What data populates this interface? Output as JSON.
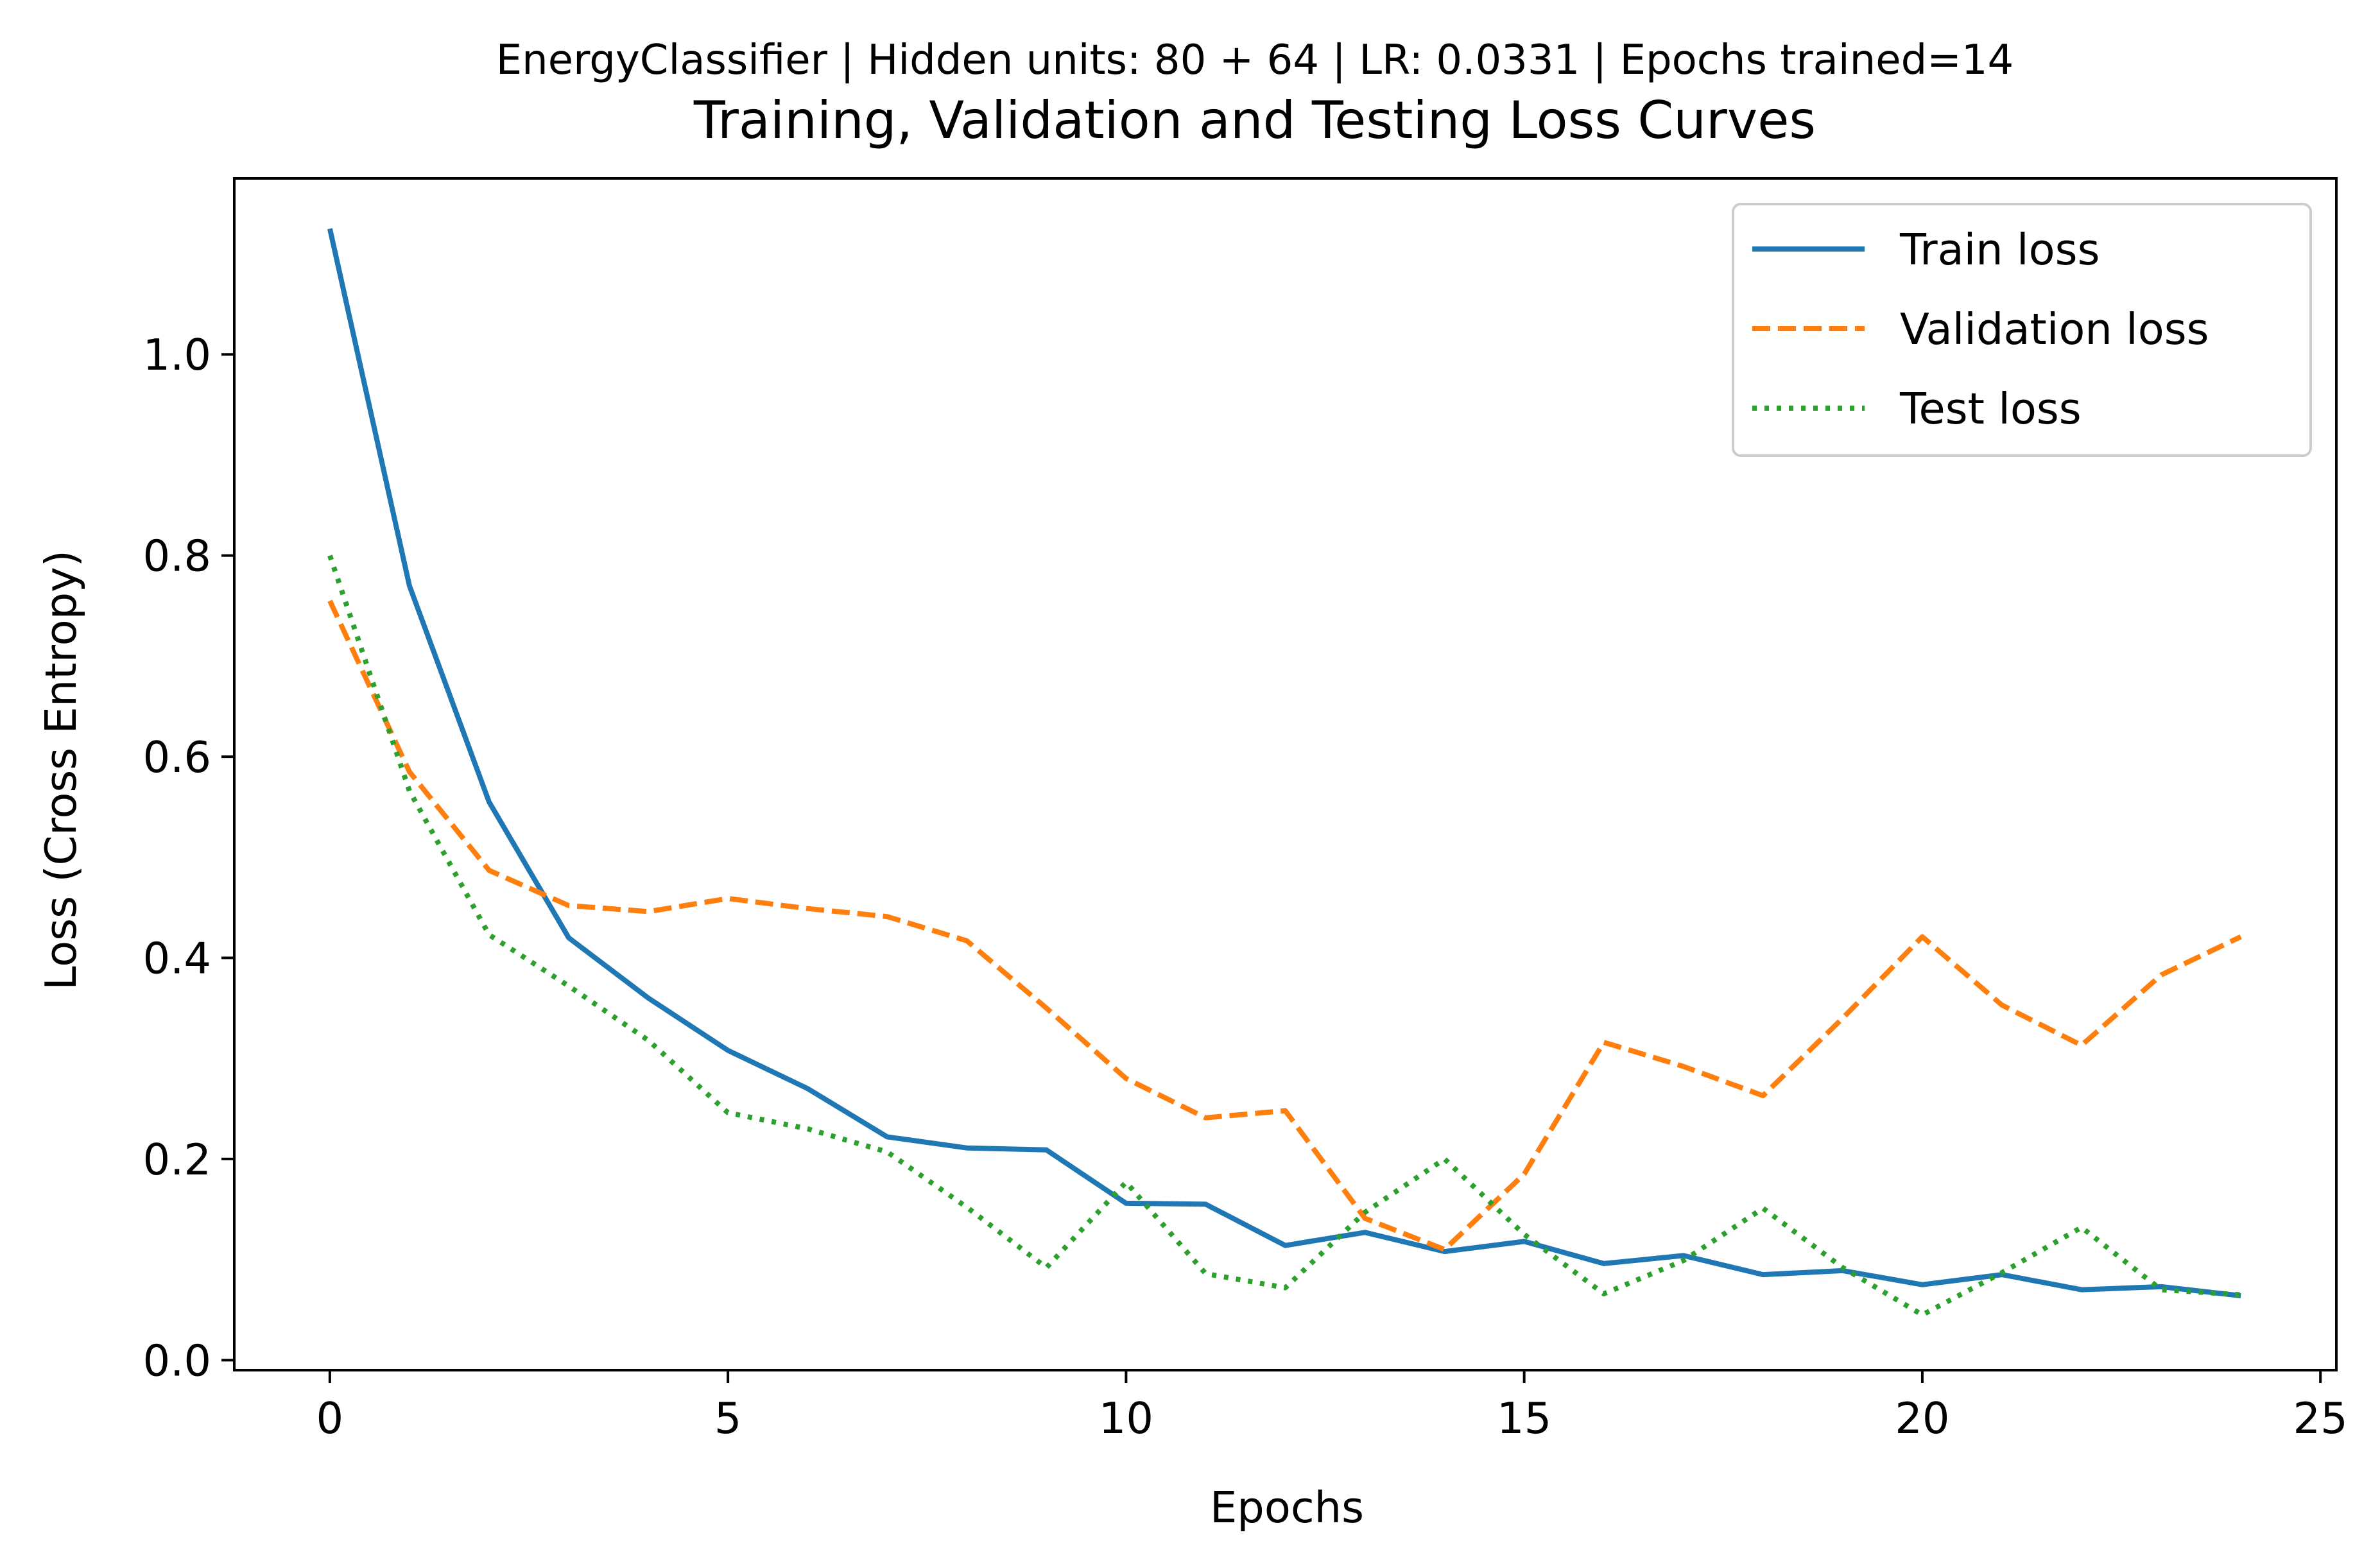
{
  "chart_data": {
    "type": "line",
    "suptitle": "EnergyClassifier | Hidden units: 80 + 64 | LR: 0.0331 | Epochs trained=14",
    "title": "Training, Validation and Testing Loss Curves",
    "xlabel": "Epochs",
    "ylabel": "Loss (Cross Entropy)",
    "xlim": [
      -1.2,
      25.2
    ],
    "ylim": [
      -0.01,
      1.175
    ],
    "xticks": [
      0,
      5,
      10,
      15,
      20,
      25
    ],
    "xtick_labels": [
      "0",
      "5",
      "10",
      "15",
      "20",
      "25"
    ],
    "yticks": [
      0.0,
      0.2,
      0.4,
      0.6,
      0.8,
      1.0
    ],
    "ytick_labels": [
      "0.0",
      "0.2",
      "0.4",
      "0.6",
      "0.8",
      "1.0"
    ],
    "grid": false,
    "legend_position": "top-right",
    "x": [
      0,
      1,
      2,
      3,
      4,
      5,
      6,
      7,
      8,
      9,
      10,
      11,
      12,
      13,
      14,
      15,
      16,
      17,
      18,
      19,
      20,
      21,
      22,
      23,
      24
    ],
    "series": [
      {
        "name": "Train loss",
        "color": "#1f77b4",
        "style": "solid",
        "values": [
          1.125,
          0.77,
          0.555,
          0.42,
          0.36,
          0.308,
          0.27,
          0.222,
          0.211,
          0.209,
          0.156,
          0.155,
          0.114,
          0.127,
          0.108,
          0.118,
          0.096,
          0.104,
          0.085,
          0.089,
          0.075,
          0.085,
          0.07,
          0.073,
          0.064
        ]
      },
      {
        "name": "Validation loss",
        "color": "#ff7f0e",
        "style": "dashed",
        "values": [
          0.755,
          0.585,
          0.487,
          0.452,
          0.446,
          0.459,
          0.449,
          0.441,
          0.417,
          0.35,
          0.28,
          0.241,
          0.248,
          0.141,
          0.11,
          0.185,
          0.316,
          0.292,
          0.263,
          0.34,
          0.421,
          0.353,
          0.313,
          0.383,
          0.421
        ]
      },
      {
        "name": "Test loss",
        "color": "#2ca02c",
        "style": "dotted",
        "values": [
          0.8,
          0.566,
          0.423,
          0.372,
          0.318,
          0.246,
          0.23,
          0.207,
          0.152,
          0.092,
          0.177,
          0.086,
          0.072,
          0.147,
          0.2,
          0.125,
          0.066,
          0.099,
          0.151,
          0.092,
          0.045,
          0.087,
          0.132,
          0.07,
          0.065
        ]
      }
    ]
  }
}
